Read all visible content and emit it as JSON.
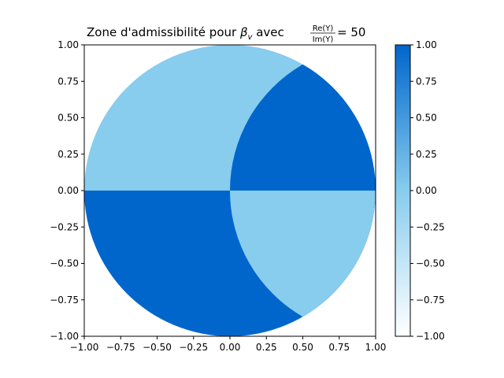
{
  "chart_data": {
    "type": "heatmap",
    "title": {
      "prefix": "Zone d'admissibilité pour ",
      "beta": "β",
      "beta_sub": "v",
      "avec": " avec ",
      "frac_num": "Re(Y)",
      "frac_den": "Im(Y)",
      "suffix": " = 50"
    },
    "xlabel": "",
    "ylabel": "",
    "xlim": [
      -1.0,
      1.0
    ],
    "ylim": [
      -1.0,
      1.0
    ],
    "xticks": [
      "−1.00",
      "−0.75",
      "−0.50",
      "−0.25",
      "0.00",
      "0.25",
      "0.50",
      "0.75",
      "1.00"
    ],
    "yticks": [
      "−1.00",
      "−0.75",
      "−0.50",
      "−0.25",
      "0.00",
      "0.25",
      "0.50",
      "0.75",
      "1.00"
    ],
    "grid": false,
    "domain": "unit disk",
    "boundary_circle": {
      "center": [
        0.5,
        0.0
      ],
      "radius": 1.0
    },
    "regions": [
      {
        "name": "upper-left",
        "value": 0.0
      },
      {
        "name": "upper-right",
        "value": 1.0
      },
      {
        "name": "lower-left",
        "value": 1.0
      },
      {
        "name": "lower-right",
        "value": 0.0
      }
    ],
    "colorbar": {
      "range": [
        -1.0,
        1.0
      ],
      "ticks": [
        "1.00",
        "0.75",
        "0.50",
        "0.25",
        "0.00",
        "−0.25",
        "−0.50",
        "−0.75",
        "−1.00"
      ],
      "colors": {
        "low": "#ffffff",
        "mid": "#88ccee",
        "high": "#0066cc"
      }
    },
    "colors": {
      "value_0": "#88ccee",
      "value_1": "#0066cc"
    }
  }
}
